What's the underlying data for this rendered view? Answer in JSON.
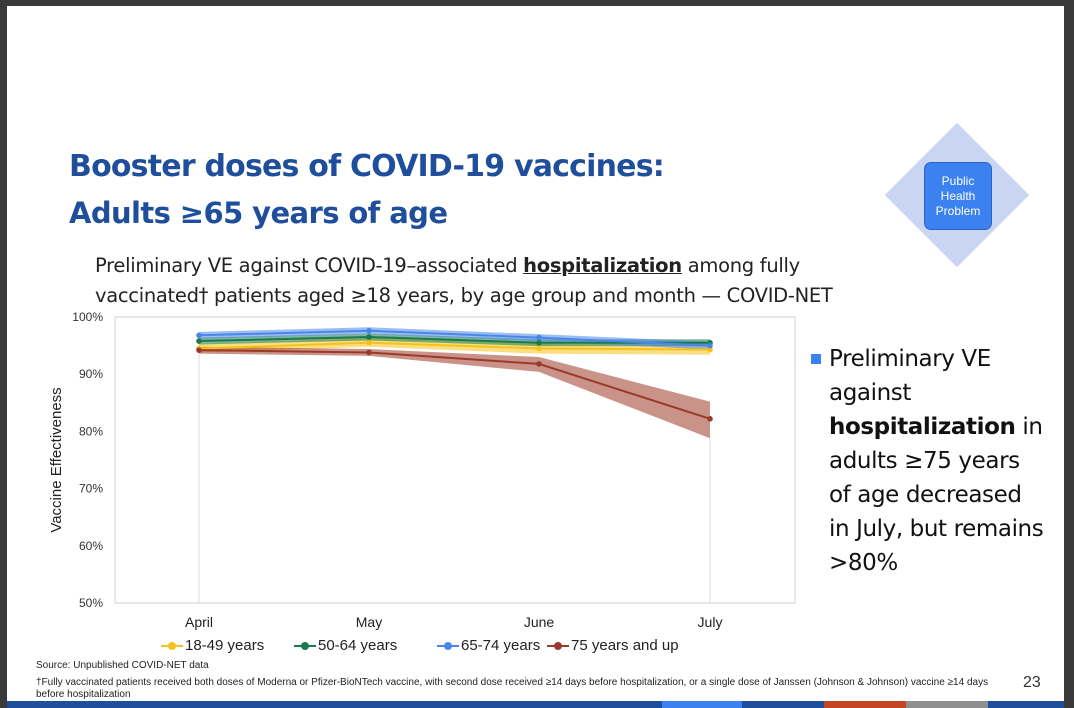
{
  "slide": {
    "title": "Booster doses of COVID-19 vaccines:",
    "subtitle": "Adults ≥65 years of age",
    "chart_title_part1": "Preliminary VE against COVID-19–associated ",
    "chart_title_bold": "hospitalization",
    "chart_title_part2": " among fully vaccinated† patients aged ≥18 years, by age group and month — COVID-NET",
    "badge": "Public Health Problem",
    "bullet": {
      "part1": "Preliminary VE against ",
      "bold": "hospitalization",
      "part2": " in adults ≥75 years of age decreased in July, but remains >80%"
    },
    "source": "Source: Unpublished COVID-NET data",
    "footnote": "†Fully vaccinated patients received both doses of Moderna or Pfizer-BioNTech vaccine, with second dose received ≥14 days before hospitalization, or a single dose of Janssen (Johnson & Johnson) vaccine ≥14 days before hospitalization",
    "page_number": "23"
  },
  "colors": {
    "title": "#1f4e9c",
    "accent": "#3b82f0",
    "bar": [
      "#1f4e9c",
      "#3b82f0",
      "#c44524",
      "#8f8f8f"
    ]
  },
  "chart_data": {
    "type": "line",
    "title": "Preliminary VE against COVID-19–associated hospitalization among fully vaccinated† patients aged ≥18 years, by age group and month — COVID-NET",
    "xlabel": "",
    "ylabel": "Vaccine Effectiveness",
    "categories": [
      "April",
      "May",
      "June",
      "July"
    ],
    "ylim": [
      50,
      100
    ],
    "y_ticks": [
      "50%",
      "60%",
      "70%",
      "80%",
      "90%",
      "100%"
    ],
    "y_tick_values": [
      50,
      60,
      70,
      80,
      90,
      100
    ],
    "series": [
      {
        "name": "18-49 years",
        "color": "#f5c219",
        "values": [
          94.5,
          95.5,
          94.5,
          94.3
        ],
        "ci_low": [
          93.8,
          94.8,
          93.6,
          93.4
        ],
        "ci_high": [
          95.3,
          96.3,
          95.3,
          95.1
        ]
      },
      {
        "name": "50-64 years",
        "color": "#1a7a4c",
        "values": [
          95.8,
          96.5,
          95.5,
          95.5
        ],
        "ci_low": [
          95.2,
          95.9,
          94.9,
          94.9
        ],
        "ci_high": [
          96.4,
          97.1,
          96.1,
          96.1
        ]
      },
      {
        "name": "65-74 years",
        "color": "#4a86e8",
        "values": [
          96.8,
          97.6,
          96.4,
          95.0
        ],
        "ci_low": [
          96.2,
          97.0,
          95.8,
          94.3
        ],
        "ci_high": [
          97.4,
          98.2,
          97.0,
          95.7
        ]
      },
      {
        "name": "75 years and up",
        "color": "#9c3a2a",
        "values": [
          94.2,
          93.8,
          91.8,
          82.2
        ],
        "ci_low": [
          93.6,
          93.2,
          90.4,
          78.8
        ],
        "ci_high": [
          94.8,
          94.4,
          93.0,
          85.2
        ]
      }
    ],
    "legend_position": "bottom"
  }
}
